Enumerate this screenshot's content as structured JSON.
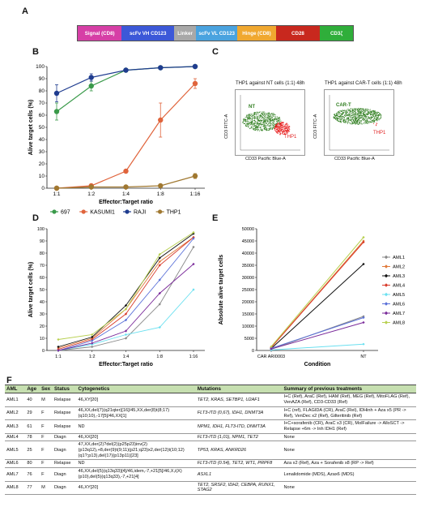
{
  "panels": {
    "a": "A",
    "b": "B",
    "c": "C",
    "d": "D",
    "e": "E",
    "f": "F"
  },
  "construct": [
    {
      "label": "Signal (CD8)",
      "color": "#d63fa6",
      "w": 16
    },
    {
      "label": "scFv VH CD123",
      "color": "#3c58d8",
      "w": 19
    },
    {
      "label": "Linker",
      "color": "#a8a8a8",
      "w": 8
    },
    {
      "label": "scFv VL CD123",
      "color": "#4aa3df",
      "w": 15
    },
    {
      "label": "Hinge (CD8)",
      "color": "#f0a830",
      "w": 14
    },
    {
      "label": "CD28",
      "color": "#c8281e",
      "w": 16
    },
    {
      "label": "CD3ζ",
      "color": "#2fae3a",
      "w": 12
    }
  ],
  "panelC": {
    "left": {
      "title": "THP1 against NT cells (1:1) 48h",
      "cluster": "NT",
      "target": "THP1",
      "xlabel": "CD33 Pacific Blue-A",
      "ylabel": "CD3 FITC-A"
    },
    "right": {
      "title": "THP1 against CAR-T cells (1:1) 48h",
      "cluster": "CAR-T",
      "target": "THP1",
      "xlabel": "CD33 Pacific Blue-A",
      "ylabel": "CD3 FITC-A"
    }
  },
  "chart_data": [
    {
      "panel": "B",
      "type": "line",
      "categories": [
        "1:1",
        "1:2",
        "1:4",
        "1:8",
        "1:16"
      ],
      "xlabel": "Effector:Target ratio",
      "ylabel": "Alive target cells (%)",
      "ylim": [
        0,
        100
      ],
      "yticks": [
        0,
        10,
        20,
        30,
        40,
        50,
        60,
        70,
        80,
        90,
        100
      ],
      "legend": "bottom",
      "series": [
        {
          "name": "697",
          "color": "#3a9a4a",
          "values": [
            63,
            84,
            97,
            99,
            100
          ],
          "err": [
            7,
            4,
            1,
            1,
            0
          ]
        },
        {
          "name": "KASUMI1",
          "color": "#e0643c",
          "values": [
            0,
            2,
            14,
            56,
            86
          ],
          "err": [
            0,
            1,
            1,
            14,
            4
          ]
        },
        {
          "name": "RAJI",
          "color": "#1f3c8f",
          "values": [
            78,
            91,
            97,
            99,
            100
          ],
          "err": [
            7,
            3,
            1,
            1,
            0
          ]
        },
        {
          "name": "THP1",
          "color": "#a07830",
          "values": [
            0,
            1,
            1,
            2,
            10
          ],
          "err": [
            0,
            0,
            0,
            0,
            2
          ]
        }
      ]
    },
    {
      "panel": "D",
      "type": "line",
      "categories": [
        "1:1",
        "1:2",
        "1:4",
        "1:8",
        "1:16"
      ],
      "xlabel": "Effector:Target ratio",
      "ylabel": "Alive target cells (%)",
      "ylim": [
        0,
        100
      ],
      "yticks": [
        0,
        10,
        20,
        30,
        40,
        50,
        60,
        70,
        80,
        90,
        100
      ],
      "series": [
        {
          "name": "AML1",
          "color": "#888888",
          "values": [
            0,
            3,
            10,
            38,
            85
          ]
        },
        {
          "name": "AML2",
          "color": "#e07a3a",
          "values": [
            2,
            10,
            34,
            73,
            93
          ]
        },
        {
          "name": "AML3",
          "color": "#111111",
          "values": [
            3,
            11,
            37,
            76,
            96
          ]
        },
        {
          "name": "AML4",
          "color": "#d83a2a",
          "values": [
            1,
            9,
            30,
            70,
            93
          ]
        },
        {
          "name": "AML5",
          "color": "#6ae0f0",
          "values": [
            0,
            5,
            13,
            19,
            50
          ]
        },
        {
          "name": "AML6",
          "color": "#5a70d8",
          "values": [
            0,
            8,
            25,
            58,
            92
          ]
        },
        {
          "name": "AML7",
          "color": "#7a2a9a",
          "values": [
            0,
            6,
            16,
            47,
            71
          ]
        },
        {
          "name": "AML8",
          "color": "#b8d050",
          "values": [
            9,
            13,
            34,
            79,
            97
          ]
        }
      ]
    },
    {
      "panel": "E",
      "type": "line",
      "categories": [
        "CAR ARI0003",
        "NT"
      ],
      "xlabel": "Condition",
      "ylabel": "Absolute alive target cells",
      "ylim": [
        0,
        50000
      ],
      "yticks": [
        0,
        5000,
        10000,
        15000,
        20000,
        25000,
        30000,
        35000,
        40000,
        45000,
        50000
      ],
      "legend": "right",
      "series": [
        {
          "name": "AML1",
          "color": "#888888",
          "values": [
            500,
            14000
          ]
        },
        {
          "name": "AML2",
          "color": "#e07a3a",
          "values": [
            1300,
            45000
          ]
        },
        {
          "name": "AML3",
          "color": "#111111",
          "values": [
            800,
            35500
          ]
        },
        {
          "name": "AML4",
          "color": "#d83a2a",
          "values": [
            1200,
            44500
          ]
        },
        {
          "name": "AML5",
          "color": "#6ae0f0",
          "values": [
            200,
            2600
          ]
        },
        {
          "name": "AML6",
          "color": "#5a70d8",
          "values": [
            900,
            13500
          ]
        },
        {
          "name": "AML7",
          "color": "#7a2a9a",
          "values": [
            600,
            11500
          ]
        },
        {
          "name": "AML8",
          "color": "#b8d050",
          "values": [
            1600,
            46500
          ]
        }
      ]
    }
  ],
  "table": {
    "headers": [
      "AML",
      "Age",
      "Sex",
      "Status",
      "Cytogenetics",
      "Mutations",
      "Summary of previous treatments"
    ],
    "rows": [
      [
        "AML1",
        "40",
        "M",
        "Relapse",
        "46,XY[20]",
        "TET2, KRAS, SETBP1, U2AF1",
        "I+C (Ref), AraC (Ref), HAM (Ref), MEG (Ref), MitoFLAG (Ref), VenAZA (Ref), CD3-CD33 (Ref)"
      ],
      [
        "AML2",
        "29",
        "F",
        "Relapse",
        "46,XX,del(7)(q21qter)[16]/45,XX,der(8)t(8;17)(q10;10),-17[5]/46,XX[1]",
        "FLT3-ITD (0,67), IDH1, DNMT3A",
        "I+C (ref), FLAGIDA (CR), AraC (Rel), IDHinh + Aza x5 (PR -> Ref), VenDec x2 (Ref), Gilteritinib (Ref)"
      ],
      [
        "AML3",
        "61",
        "F",
        "Relapse",
        "ND",
        "NPM1, IDH1, FLT3-ITD, DNMT3A",
        "I+C+sorafenib (CR), AraC x3 (CR), MolFailure -> AlloSCT -> Relapse +6m -> Inh IDH1 (Ref)"
      ],
      [
        "AML4",
        "78",
        "F",
        "Diagn",
        "46,XX[20]",
        "FLT3-ITD (1,01), NPM1, TET2",
        "None"
      ],
      [
        "AML5",
        "25",
        "F",
        "Diagn",
        "47,XX,der(2)?del(2)(p25p23)inv(2)(p13q12),+8,der(9)t(9;11)(p21;q23)x2,der(12)t(10;12)(q1?;p13),del(17)(p13p11)[23]",
        "TP53, KRAS, ANKRD26",
        "None"
      ],
      [
        "AML6",
        "80",
        "F",
        "Relapse",
        "ND",
        "FLT3-ITD (0.54), TET2, WT1, PRPF8",
        "Aza x2 (Ref), Aza + Sorafenib x8 (RP -> Ref)"
      ],
      [
        "AML7",
        "76",
        "F",
        "Diagn",
        "46,XX,del(5)(q13q33)[4]/46,idem,-7,+21[5]/46,X,i(X)(p10),del(5)(q13q33),-7,+21[4]",
        "ASXL1",
        "Lenalidomide (MDS), Azax6 (MDS)"
      ],
      [
        "AML8",
        "77",
        "M",
        "Diagn",
        "46,XY[20]",
        "TET2, SRSF2, IDH2, CEBPA, RUNX1, STAG2",
        "None"
      ]
    ]
  }
}
